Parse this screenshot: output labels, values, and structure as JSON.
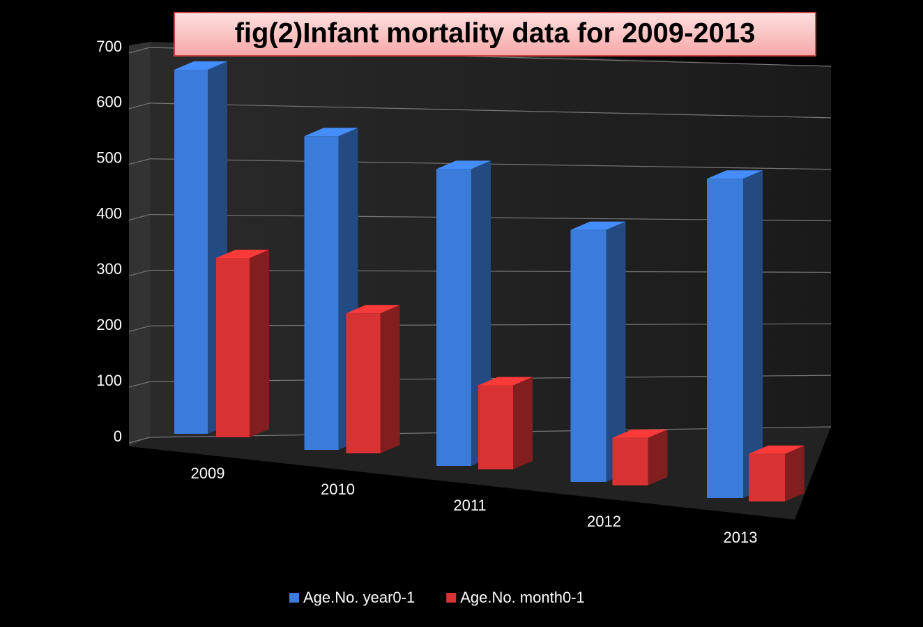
{
  "chart_data": {
    "type": "bar3d",
    "title": "fig(2)Infant mortality data for 2009-2013",
    "categories": [
      "2009",
      "2010",
      "2011",
      "2012",
      "2013"
    ],
    "series": [
      {
        "name": "Age.No. year0-1",
        "color": "#3b7bd9",
        "values": [
          650,
          560,
          530,
          450,
          570
        ]
      },
      {
        "name": "Age.No. month0-1",
        "color": "#d93232",
        "values": [
          320,
          250,
          150,
          85,
          85
        ]
      }
    ],
    "ylim": [
      0,
      700
    ],
    "yticks": [
      0,
      100,
      200,
      300,
      400,
      500,
      600,
      700
    ],
    "grid": true
  }
}
